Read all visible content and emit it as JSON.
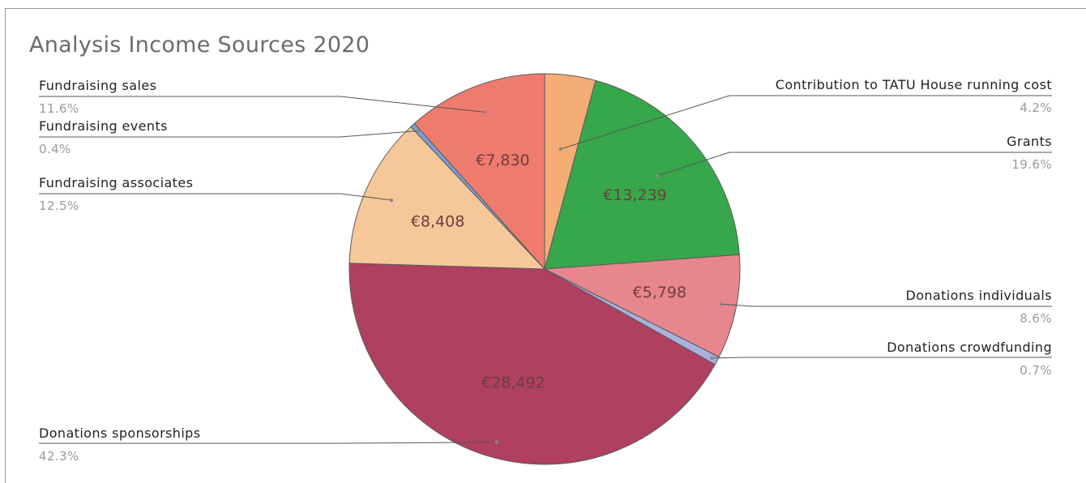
{
  "chart_data": {
    "type": "pie",
    "title": "Analysis Income Sources 2020",
    "slices": [
      {
        "name": "Contribution to TATU House running cost",
        "percent": "4.2%",
        "share": 4.2,
        "value_label": "",
        "color": "#f3ad75"
      },
      {
        "name": "Grants",
        "percent": "19.6%",
        "share": 19.6,
        "value_label": "€13,239",
        "color": "#37a74b"
      },
      {
        "name": "Donations individuals",
        "percent": "8.6%",
        "share": 8.6,
        "value_label": "€5,798",
        "color": "#e8868d"
      },
      {
        "name": "Donations crowdfunding",
        "percent": "0.7%",
        "share": 0.7,
        "value_label": "",
        "color": "#a9b1dc"
      },
      {
        "name": "Donations sponsorships",
        "percent": "42.3%",
        "share": 42.3,
        "value_label": "€28,492",
        "color": "#b04060"
      },
      {
        "name": "Fundraising associates",
        "percent": "12.5%",
        "share": 12.5,
        "value_label": "€8,408",
        "color": "#f6c899"
      },
      {
        "name": "Fundraising events",
        "percent": "0.4%",
        "share": 0.4,
        "value_label": "",
        "color": "#7aa0d4"
      },
      {
        "name": "Fundraising sales",
        "percent": "11.6%",
        "share": 11.6,
        "value_label": "€7,830",
        "color": "#ef7b6e"
      }
    ]
  }
}
